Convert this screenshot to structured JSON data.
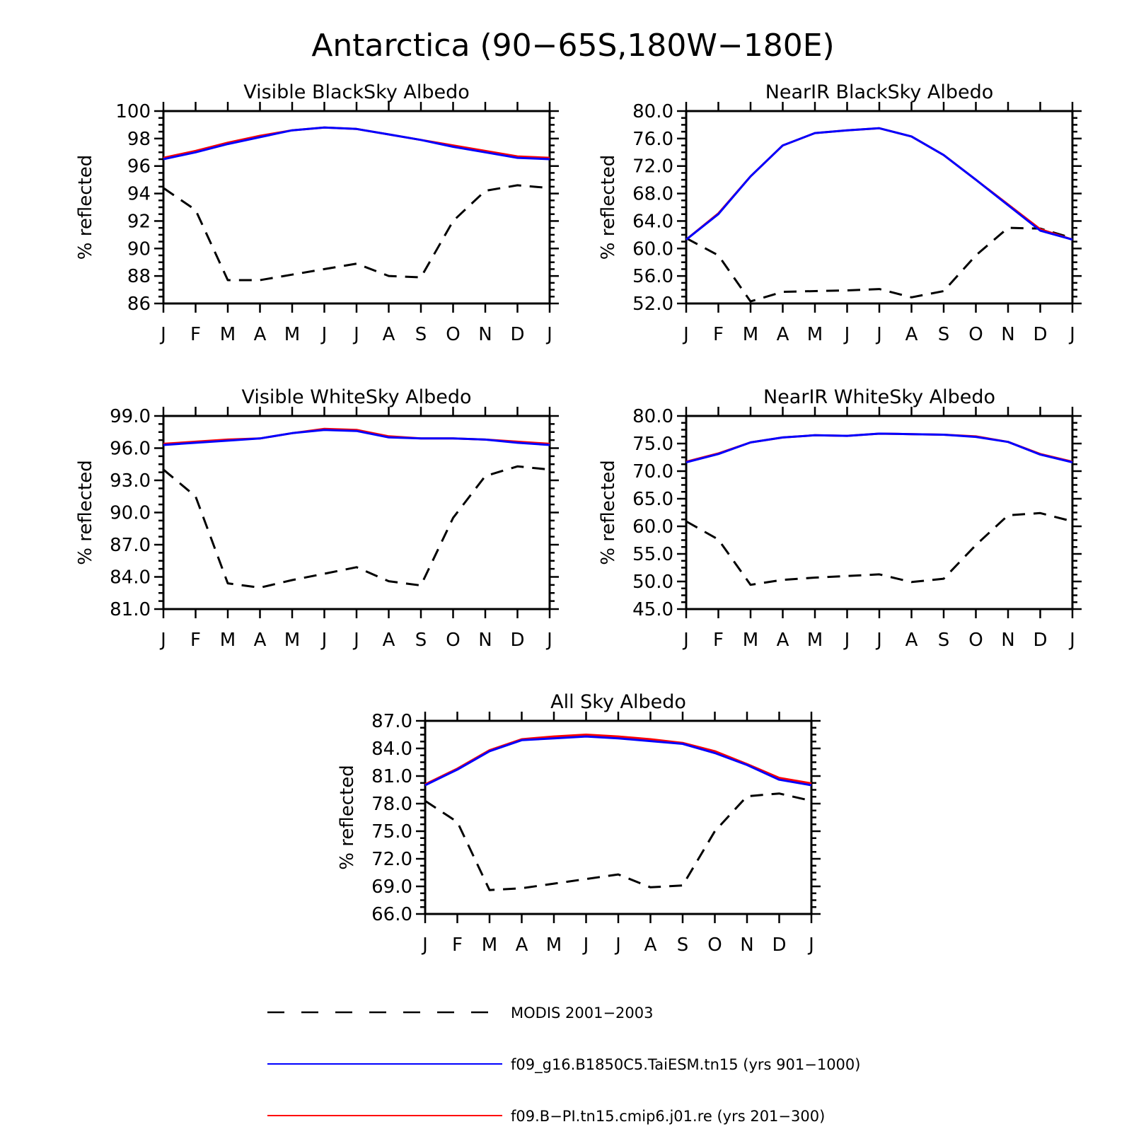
{
  "figure": {
    "title": "Antarctica (90−65S,180W−180E)"
  },
  "legend": {
    "placement": "bottom",
    "entries": [
      {
        "label": "MODIS 2001−2003",
        "color": "#000000",
        "style": "dashed"
      },
      {
        "label": "f09_g16.B1850C5.TaiESM.tn15 (yrs 901−1000)",
        "color": "#0000ff",
        "style": "solid"
      },
      {
        "label": "f09.B−PI.tn15.cmip6.j01.re (yrs 201−300)",
        "color": "#ff0000",
        "style": "solid"
      }
    ]
  },
  "chart_data": [
    {
      "type": "line",
      "title": "Visible BlackSky Albedo",
      "ylabel": "% reflected",
      "ylim": [
        86,
        100
      ],
      "yticks": [
        "86",
        "88",
        "90",
        "92",
        "94",
        "96",
        "98",
        "100"
      ],
      "categories": [
        "J",
        "F",
        "M",
        "A",
        "M",
        "J",
        "J",
        "A",
        "S",
        "O",
        "N",
        "D",
        "J"
      ],
      "series": [
        {
          "name": "MODIS 2001−2003",
          "color": "#000000",
          "dashed": true,
          "values": [
            94.4,
            92.8,
            87.7,
            87.7,
            88.1,
            88.5,
            88.9,
            88.0,
            87.9,
            92.0,
            94.2,
            94.6,
            94.4
          ]
        },
        {
          "name": "f09.B−PI.tn15.cmip6.j01.re (yrs 201−300)",
          "color": "#ff0000",
          "dashed": false,
          "values": [
            96.6,
            97.1,
            97.7,
            98.2,
            98.6,
            98.8,
            98.7,
            98.3,
            97.9,
            97.5,
            97.1,
            96.7,
            96.6
          ]
        },
        {
          "name": "f09_g16.B1850C5.TaiESM.tn15 (yrs 901−1000)",
          "color": "#0000ff",
          "dashed": false,
          "values": [
            96.5,
            97.0,
            97.6,
            98.1,
            98.6,
            98.8,
            98.7,
            98.3,
            97.9,
            97.4,
            97.0,
            96.6,
            96.5
          ]
        }
      ]
    },
    {
      "type": "line",
      "title": "NearIR BlackSky Albedo",
      "ylabel": "% reflected",
      "ylim": [
        52,
        80
      ],
      "yticks": [
        "52.0",
        "56.0",
        "60.0",
        "64.0",
        "68.0",
        "72.0",
        "76.0",
        "80.0"
      ],
      "categories": [
        "J",
        "F",
        "M",
        "A",
        "M",
        "J",
        "J",
        "A",
        "S",
        "O",
        "N",
        "D",
        "J"
      ],
      "series": [
        {
          "name": "MODIS 2001−2003",
          "color": "#000000",
          "dashed": true,
          "values": [
            61.5,
            59.0,
            52.3,
            53.7,
            53.8,
            53.9,
            54.1,
            52.9,
            53.8,
            59.0,
            63.0,
            62.9,
            61.5
          ]
        },
        {
          "name": "f09.B−PI.tn15.cmip6.j01.re (yrs 201−300)",
          "color": "#ff0000",
          "dashed": false,
          "values": [
            61.3,
            65.1,
            70.5,
            75.0,
            76.8,
            77.2,
            77.5,
            76.3,
            73.6,
            70.0,
            66.4,
            62.8,
            61.3
          ]
        },
        {
          "name": "f09_g16.B1850C5.TaiESM.tn15 (yrs 901−1000)",
          "color": "#0000ff",
          "dashed": false,
          "values": [
            61.3,
            65.0,
            70.5,
            75.0,
            76.8,
            77.2,
            77.5,
            76.3,
            73.6,
            70.0,
            66.3,
            62.6,
            61.3
          ]
        }
      ]
    },
    {
      "type": "line",
      "title": "Visible WhiteSky Albedo",
      "ylabel": "% reflected",
      "ylim": [
        81,
        99
      ],
      "yticks": [
        "81.0",
        "84.0",
        "87.0",
        "90.0",
        "93.0",
        "96.0",
        "99.0"
      ],
      "categories": [
        "J",
        "F",
        "M",
        "A",
        "M",
        "J",
        "J",
        "A",
        "S",
        "O",
        "N",
        "D",
        "J"
      ],
      "series": [
        {
          "name": "MODIS 2001−2003",
          "color": "#000000",
          "dashed": true,
          "values": [
            94.0,
            91.5,
            83.4,
            83.0,
            83.7,
            84.3,
            84.9,
            83.6,
            83.2,
            89.5,
            93.4,
            94.3,
            94.0
          ]
        },
        {
          "name": "f09.B−PI.tn15.cmip6.j01.re (yrs 201−300)",
          "color": "#ff0000",
          "dashed": false,
          "values": [
            96.4,
            96.6,
            96.8,
            96.9,
            97.4,
            97.8,
            97.7,
            97.1,
            96.9,
            96.9,
            96.8,
            96.6,
            96.4
          ]
        },
        {
          "name": "f09_g16.B1850C5.TaiESM.tn15 (yrs 901−1000)",
          "color": "#0000ff",
          "dashed": false,
          "values": [
            96.3,
            96.5,
            96.7,
            96.9,
            97.4,
            97.7,
            97.6,
            97.0,
            96.9,
            96.9,
            96.8,
            96.5,
            96.3
          ]
        }
      ]
    },
    {
      "type": "line",
      "title": "NearIR WhiteSky Albedo",
      "ylabel": "% reflected",
      "ylim": [
        45,
        80
      ],
      "yticks": [
        "45.0",
        "50.0",
        "55.0",
        "60.0",
        "65.0",
        "70.0",
        "75.0",
        "80.0"
      ],
      "categories": [
        "J",
        "F",
        "M",
        "A",
        "M",
        "J",
        "J",
        "A",
        "S",
        "O",
        "N",
        "D",
        "J"
      ],
      "series": [
        {
          "name": "MODIS 2001−2003",
          "color": "#000000",
          "dashed": true,
          "values": [
            60.9,
            57.6,
            49.4,
            50.3,
            50.7,
            51.0,
            51.3,
            49.9,
            50.5,
            56.6,
            62.0,
            62.4,
            60.9
          ]
        },
        {
          "name": "f09.B−PI.tn15.cmip6.j01.re (yrs 201−300)",
          "color": "#ff0000",
          "dashed": false,
          "values": [
            71.7,
            73.2,
            75.2,
            76.1,
            76.5,
            76.4,
            76.8,
            76.7,
            76.6,
            76.3,
            75.3,
            73.1,
            71.7
          ]
        },
        {
          "name": "f09_g16.B1850C5.TaiESM.tn15 (yrs 901−1000)",
          "color": "#0000ff",
          "dashed": false,
          "values": [
            71.6,
            73.1,
            75.2,
            76.1,
            76.5,
            76.4,
            76.8,
            76.7,
            76.6,
            76.2,
            75.3,
            73.0,
            71.6
          ]
        }
      ]
    },
    {
      "type": "line",
      "title": "All Sky Albedo",
      "ylabel": "% reflected",
      "ylim": [
        66,
        87
      ],
      "yticks": [
        "66.0",
        "69.0",
        "72.0",
        "75.0",
        "78.0",
        "81.0",
        "84.0",
        "87.0"
      ],
      "categories": [
        "J",
        "F",
        "M",
        "A",
        "M",
        "J",
        "J",
        "A",
        "S",
        "O",
        "N",
        "D",
        "J"
      ],
      "series": [
        {
          "name": "MODIS 2001−2003",
          "color": "#000000",
          "dashed": true,
          "values": [
            78.3,
            76.0,
            68.6,
            68.8,
            69.3,
            69.8,
            70.3,
            68.9,
            69.1,
            75.0,
            78.8,
            79.1,
            78.3
          ]
        },
        {
          "name": "f09.B−PI.tn15.cmip6.j01.re (yrs 201−300)",
          "color": "#ff0000",
          "dashed": false,
          "values": [
            80.1,
            81.8,
            83.8,
            85.0,
            85.3,
            85.5,
            85.3,
            85.0,
            84.6,
            83.7,
            82.3,
            80.8,
            80.2
          ]
        },
        {
          "name": "f09_g16.B1850C5.TaiESM.tn15 (yrs 901−1000)",
          "color": "#0000ff",
          "dashed": false,
          "values": [
            80.0,
            81.7,
            83.7,
            84.9,
            85.1,
            85.3,
            85.1,
            84.8,
            84.5,
            83.5,
            82.2,
            80.6,
            80.0
          ]
        }
      ]
    }
  ]
}
